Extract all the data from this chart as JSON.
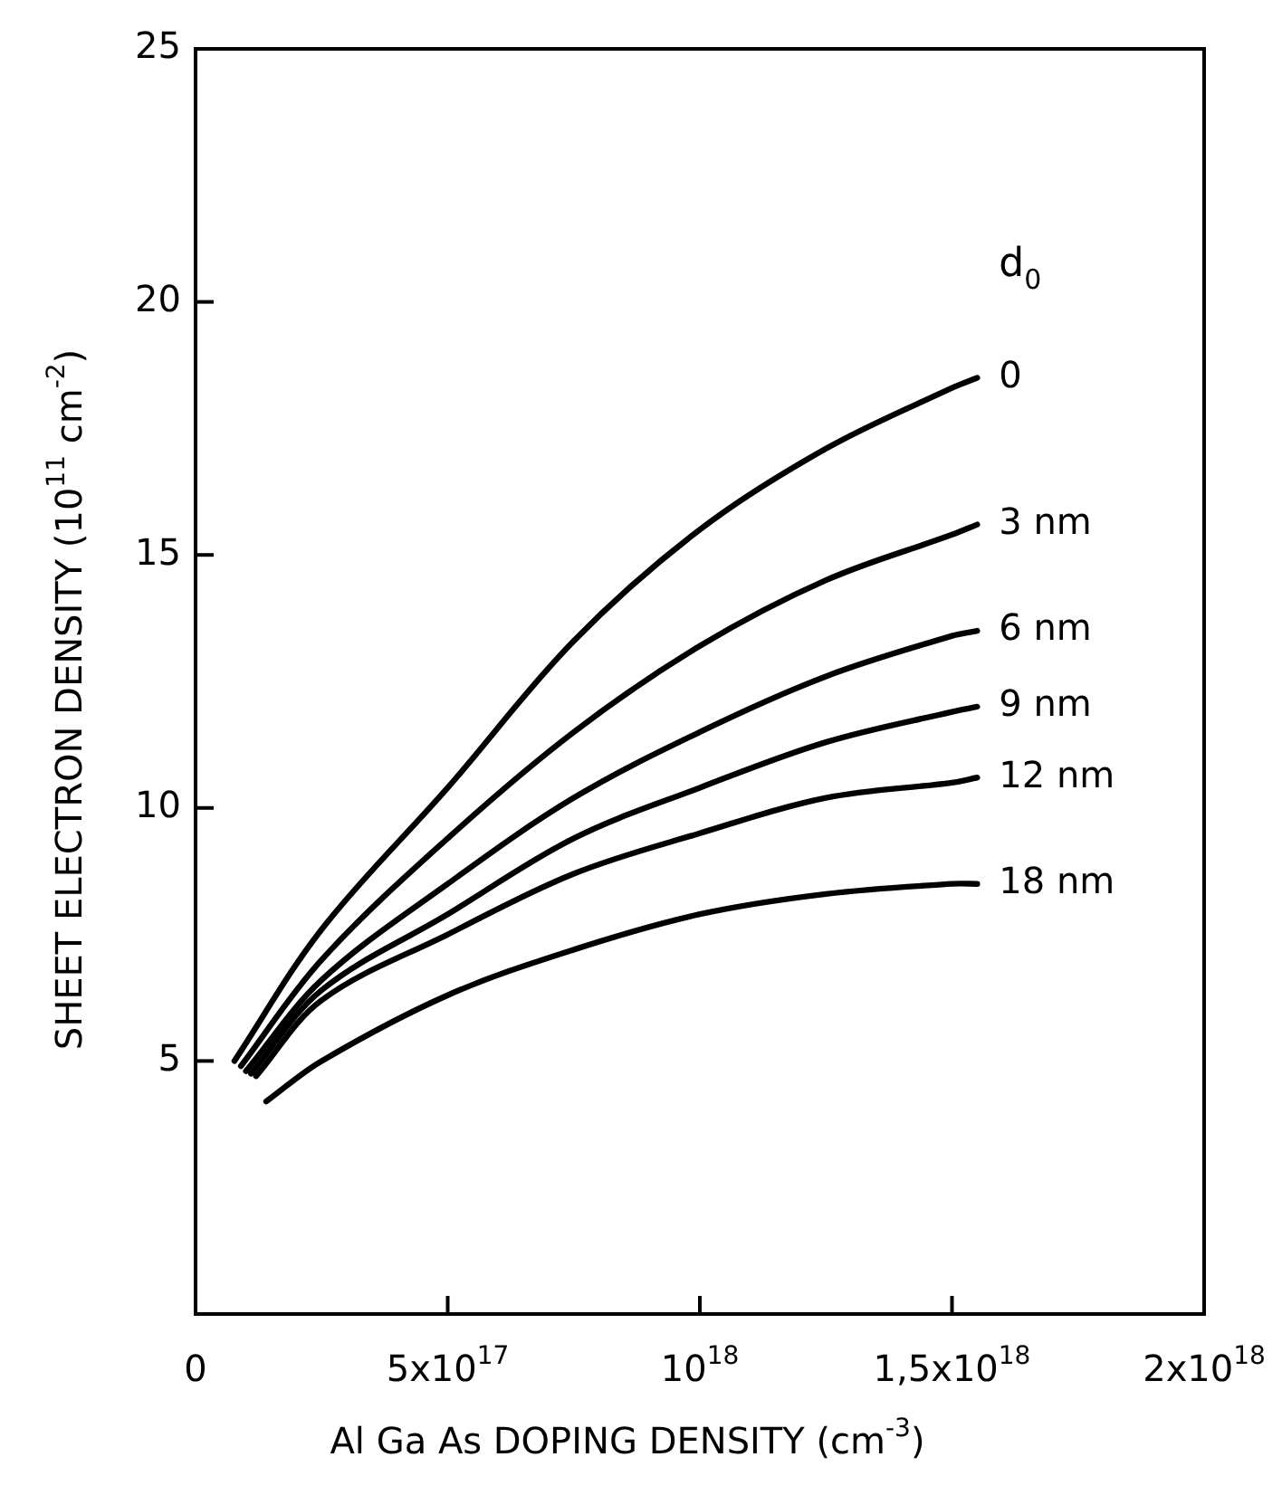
{
  "chart_data": {
    "type": "line",
    "xlabel": "Al Ga As DOPING DENSITY (cm$^{-3}$)",
    "ylabel": "SHEET ELECTRON DENSITY (10$^{11}$ cm$^{-2}$)",
    "legend_title": "d$_{0}$",
    "xlim": [
      0,
      2e+18
    ],
    "xticks": [
      0,
      {
        "value": 5e+17,
        "label": "5x10$^{17}$"
      },
      {
        "value": 1e+18,
        "label": "10$^{18}$"
      },
      {
        "value": 1.5e+18,
        "label": "1,5x10$^{18}$"
      },
      {
        "value": 2e+18,
        "label": "2x10$^{18}$"
      }
    ],
    "ylim": [
      0,
      25
    ],
    "yticks": [
      {
        "value": 0,
        "label": null
      },
      5,
      10,
      15,
      20,
      25
    ],
    "grid": false,
    "marker": "none",
    "line_style": "solid",
    "series": [
      {
        "name": "0",
        "color": "#000000",
        "x": [
          7.7e+16,
          2.5e+17,
          5e+17,
          7.5e+17,
          1e+18,
          1.25e+18,
          1.5e+18,
          1.55e+18
        ],
        "values": [
          5.0,
          7.6,
          10.4,
          13.3,
          15.5,
          17.1,
          18.3,
          18.5
        ]
      },
      {
        "name": "3 nm",
        "color": "#000000",
        "x": [
          9e+16,
          2.5e+17,
          5e+17,
          7.5e+17,
          1e+18,
          1.25e+18,
          1.5e+18,
          1.55e+18
        ],
        "values": [
          4.9,
          7.0,
          9.4,
          11.5,
          13.2,
          14.5,
          15.4,
          15.6
        ]
      },
      {
        "name": "6 nm",
        "color": "#000000",
        "x": [
          1e+17,
          2.5e+17,
          5e+17,
          7.5e+17,
          1e+18,
          1.25e+18,
          1.5e+18,
          1.55e+18
        ],
        "values": [
          4.8,
          6.6,
          8.5,
          10.2,
          11.5,
          12.6,
          13.4,
          13.5
        ]
      },
      {
        "name": "9 nm",
        "color": "#000000",
        "x": [
          1.1e+17,
          2.5e+17,
          5e+17,
          7.5e+17,
          1e+18,
          1.25e+18,
          1.5e+18,
          1.55e+18
        ],
        "values": [
          4.75,
          6.4,
          7.9,
          9.4,
          10.4,
          11.3,
          11.9,
          12.0
        ]
      },
      {
        "name": "12 nm",
        "color": "#000000",
        "x": [
          1.2e+17,
          2.5e+17,
          5e+17,
          7.5e+17,
          1e+18,
          1.25e+18,
          1.5e+18,
          1.55e+18
        ],
        "values": [
          4.7,
          6.2,
          7.5,
          8.7,
          9.5,
          10.2,
          10.5,
          10.6
        ]
      },
      {
        "name": "18 nm",
        "color": "#000000",
        "x": [
          1.4e+17,
          2.5e+17,
          5e+17,
          7.5e+17,
          1e+18,
          1.25e+18,
          1.5e+18,
          1.55e+18
        ],
        "values": [
          4.2,
          5.0,
          6.3,
          7.2,
          7.9,
          8.3,
          8.5,
          8.5
        ]
      }
    ]
  }
}
